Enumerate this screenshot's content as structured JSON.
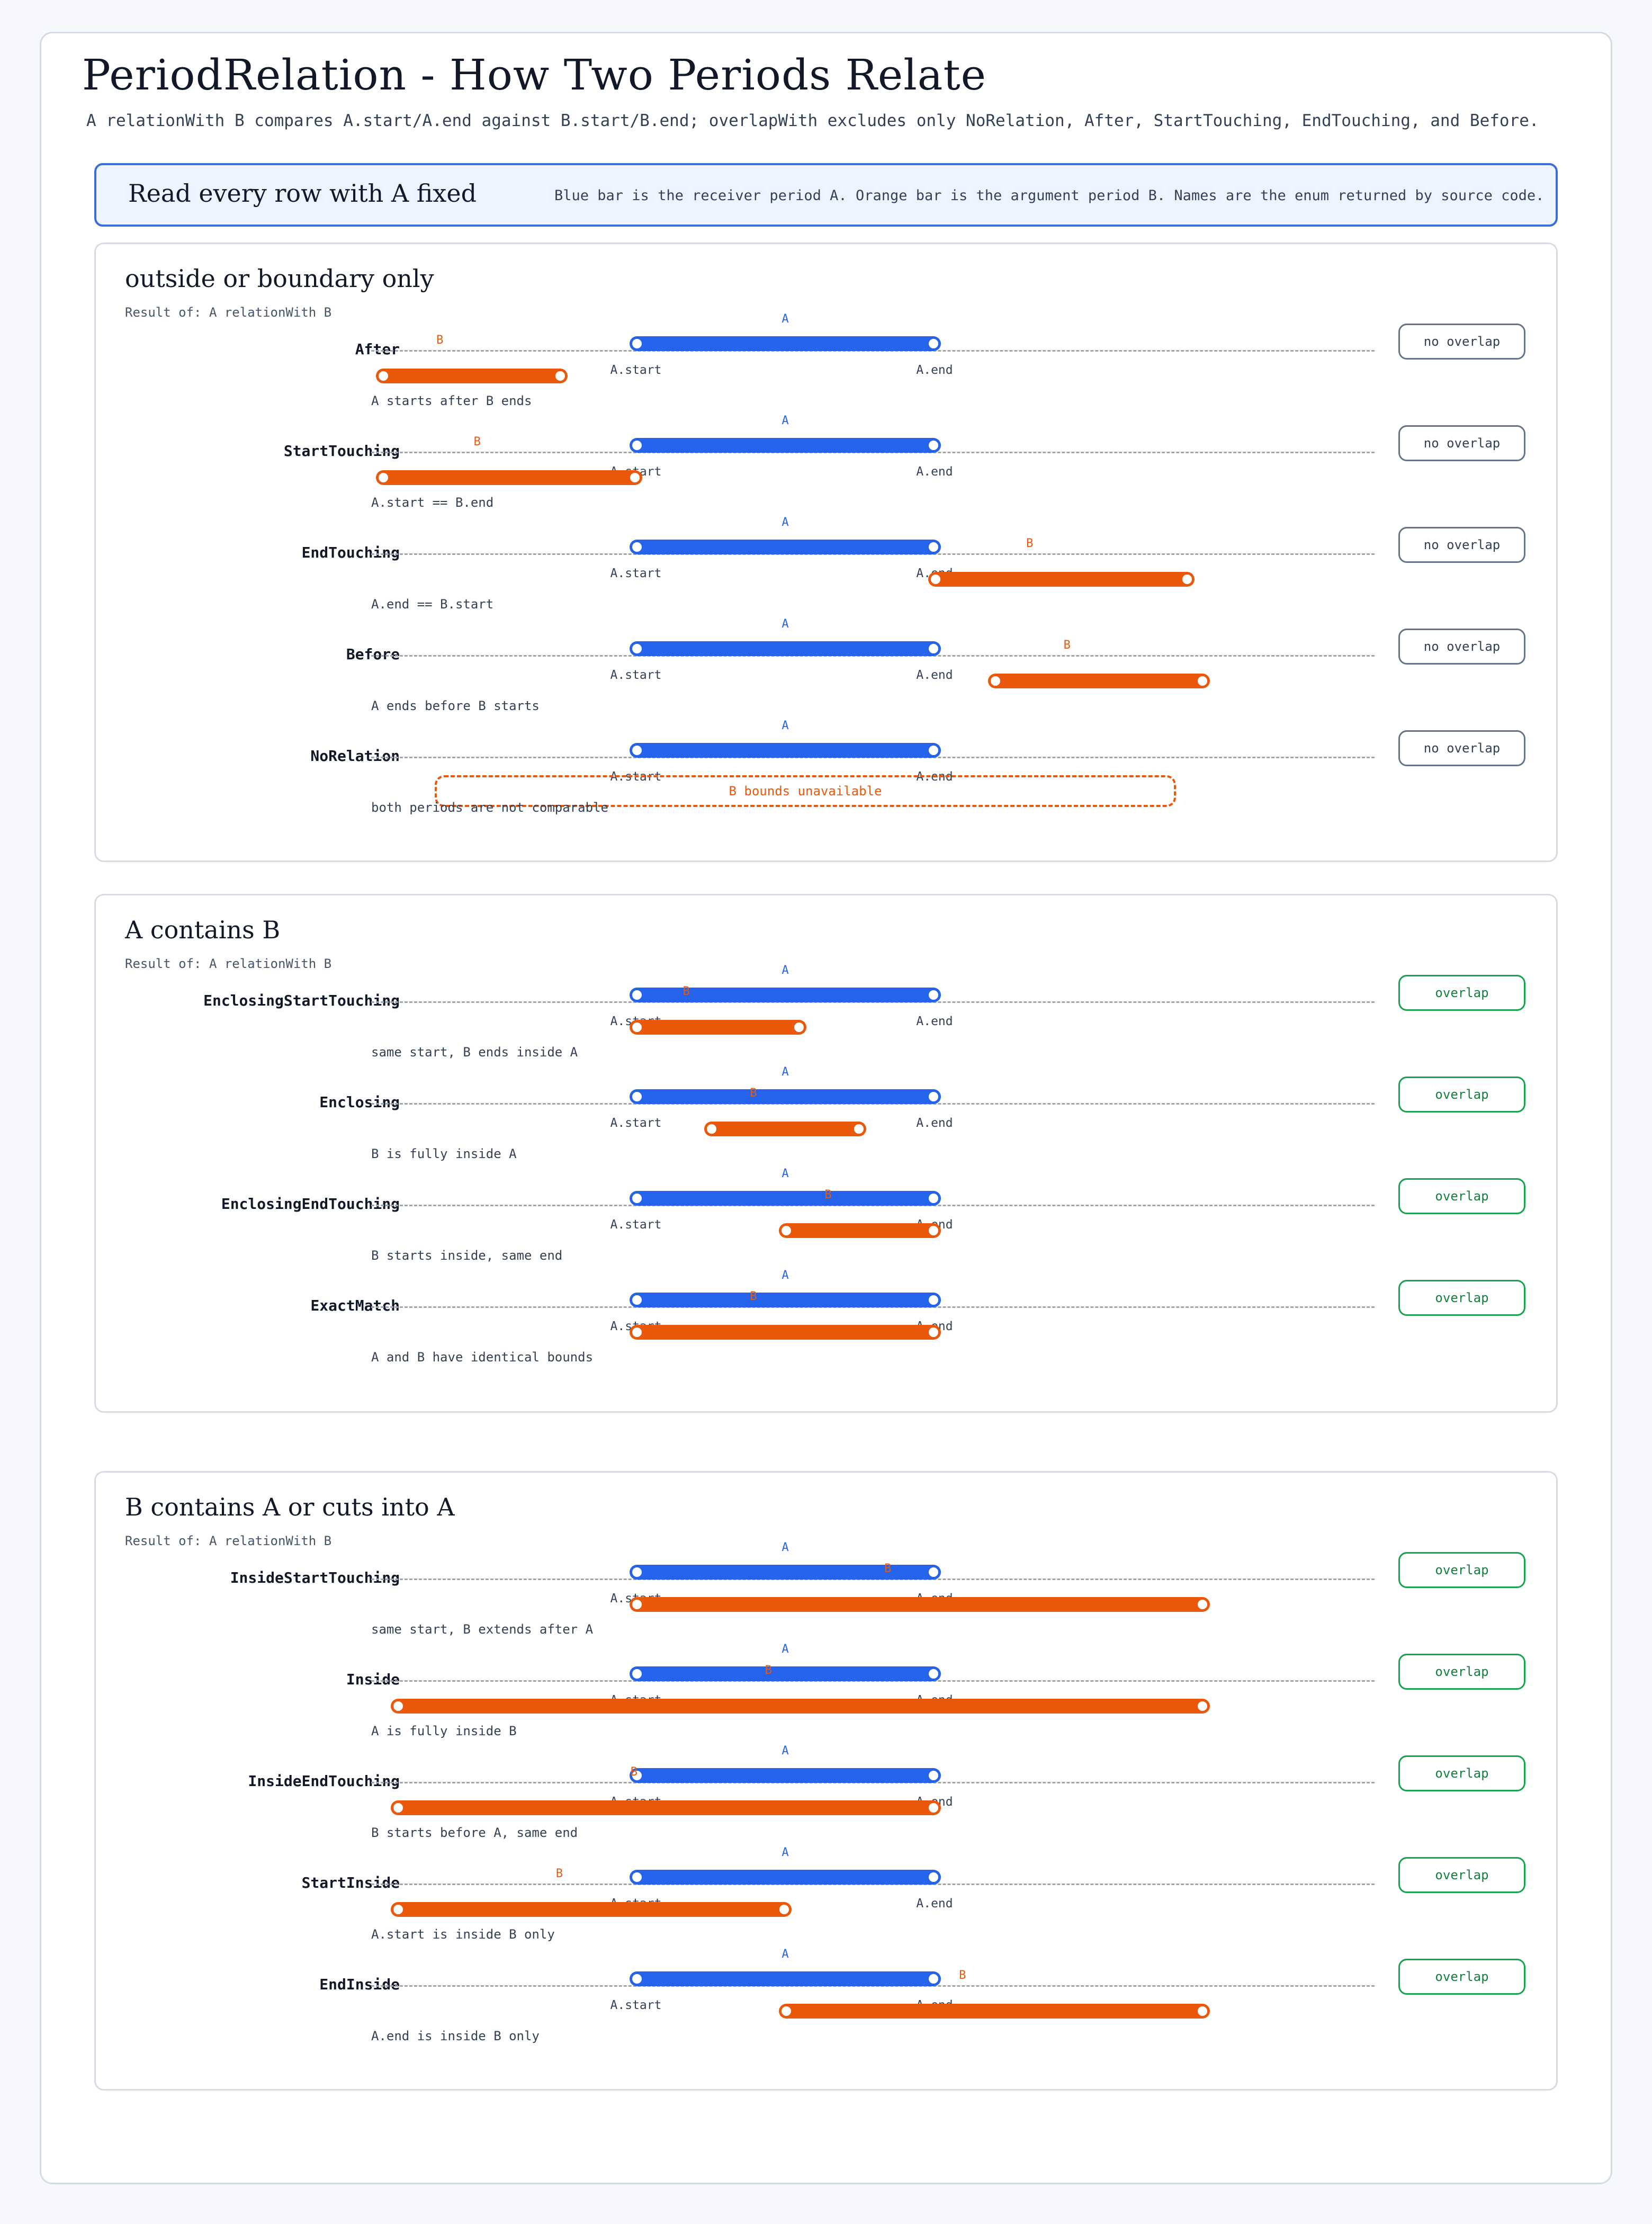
{
  "title": "PeriodRelation - How Two Periods Relate",
  "subtitle": "A relationWith B compares A.start/A.end against B.start/B.end; overlapWith excludes only NoRelation, After, StartTouching, EndTouching, and Before.",
  "banner": {
    "title": "Read every row with A fixed",
    "text": "Blue bar is the receiver period A. Orange bar is the argument period B. Names are the enum returned by source code."
  },
  "labels": {
    "a": "A",
    "b": "B",
    "a_start": "A.start",
    "a_end": "A.end",
    "b_unavailable": "B bounds unavailable"
  },
  "colors": {
    "a": "#2563eb",
    "b": "#ea580c",
    "overlap": "#16a34a",
    "no_overlap": "#64748b"
  },
  "sections": [
    {
      "title": "outside or boundary only",
      "caption": "Result of: A relationWith B",
      "rows": [
        {
          "name": "After",
          "note": "A starts after B ends",
          "badge": "no overlap",
          "overlap": false,
          "b": [
            -0.85,
            -0.25
          ]
        },
        {
          "name": "StartTouching",
          "note": "A.start == B.end",
          "badge": "no overlap",
          "overlap": false,
          "b": [
            -0.85,
            0
          ]
        },
        {
          "name": "EndTouching",
          "note": "A.end == B.start",
          "badge": "no overlap",
          "overlap": false,
          "b": [
            1,
            1.85
          ]
        },
        {
          "name": "Before",
          "note": "A ends before B starts",
          "badge": "no overlap",
          "overlap": false,
          "b": [
            1.2,
            1.9
          ]
        },
        {
          "name": "NoRelation",
          "note": "both periods are not comparable",
          "badge": "no overlap",
          "overlap": false,
          "b": null
        }
      ]
    },
    {
      "title": "A contains B",
      "caption": "Result of: A relationWith B",
      "rows": [
        {
          "name": "EnclosingStartTouching",
          "note": "same start, B ends inside A",
          "badge": "overlap",
          "overlap": true,
          "b": [
            0,
            0.55
          ]
        },
        {
          "name": "Enclosing",
          "note": "B is fully inside A",
          "badge": "overlap",
          "overlap": true,
          "b": [
            0.25,
            0.75
          ]
        },
        {
          "name": "EnclosingEndTouching",
          "note": "B starts inside, same end",
          "badge": "overlap",
          "overlap": true,
          "b": [
            0.5,
            1
          ]
        },
        {
          "name": "ExactMatch",
          "note": "A and B have identical bounds",
          "badge": "overlap",
          "overlap": true,
          "b": [
            0,
            1
          ]
        }
      ]
    },
    {
      "title": "B contains A or cuts into A",
      "caption": "Result of: A relationWith B",
      "rows": [
        {
          "name": "InsideStartTouching",
          "note": "same start, B extends after A",
          "badge": "overlap",
          "overlap": true,
          "b": [
            0,
            1.9
          ]
        },
        {
          "name": "Inside",
          "note": "A is fully inside B",
          "badge": "overlap",
          "overlap": true,
          "b": [
            -0.8,
            1.9
          ]
        },
        {
          "name": "InsideEndTouching",
          "note": "B starts before A, same end",
          "badge": "overlap",
          "overlap": true,
          "b": [
            -0.8,
            1
          ]
        },
        {
          "name": "StartInside",
          "note": "A.start is inside B only",
          "badge": "overlap",
          "overlap": true,
          "b": [
            -0.8,
            0.5
          ]
        },
        {
          "name": "EndInside",
          "note": "A.end is inside B only",
          "badge": "overlap",
          "overlap": true,
          "b": [
            0.5,
            1.9
          ]
        }
      ]
    }
  ]
}
